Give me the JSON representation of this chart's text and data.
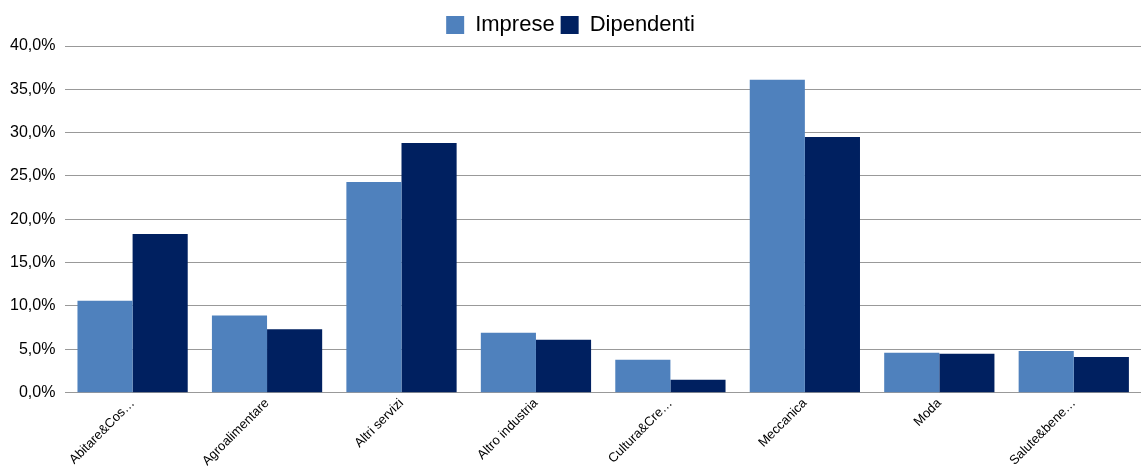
{
  "chart_data": {
    "type": "bar",
    "categories": [
      "Abitare&Cos…",
      "Agroalimentare",
      "Altri servizi",
      "Altro industria",
      "Cultura&Cre…",
      "Meccanica",
      "Moda",
      "Salute&bene…"
    ],
    "series": [
      {
        "name": "Imprese",
        "color": "#4f81bd",
        "values": [
          10.6,
          8.9,
          24.3,
          6.9,
          3.8,
          36.1,
          4.6,
          4.8
        ]
      },
      {
        "name": "Dipendenti",
        "color": "#002060",
        "values": [
          18.3,
          7.3,
          28.8,
          6.1,
          1.5,
          29.5,
          4.5,
          4.1
        ]
      }
    ],
    "ylim": [
      0,
      40
    ],
    "yticks": [
      {
        "value": 0,
        "label": "0,0%"
      },
      {
        "value": 5,
        "label": "5,0%"
      },
      {
        "value": 10,
        "label": "10,0%"
      },
      {
        "value": 15,
        "label": "15,0%"
      },
      {
        "value": 20,
        "label": "20,0%"
      },
      {
        "value": 25,
        "label": "25,0%"
      },
      {
        "value": 30,
        "label": "30,0%"
      },
      {
        "value": 35,
        "label": "35,0%"
      },
      {
        "value": 40,
        "label": "40,0%"
      }
    ],
    "grid": "y",
    "legend": "top"
  }
}
